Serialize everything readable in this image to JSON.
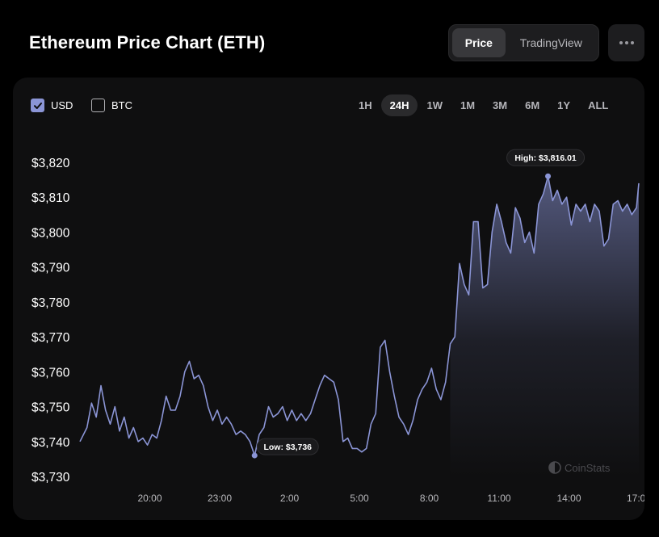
{
  "header": {
    "title": "Ethereum Price Chart (ETH)",
    "view_options": [
      "Price",
      "TradingView"
    ],
    "active_view": "Price"
  },
  "currency_toggles": [
    {
      "label": "USD",
      "checked": true
    },
    {
      "label": "BTC",
      "checked": false
    }
  ],
  "time_ranges": [
    "1H",
    "24H",
    "1W",
    "1M",
    "3M",
    "6M",
    "1Y",
    "ALL"
  ],
  "active_range": "24H",
  "watermark": "CoinStats",
  "colors": {
    "line": "#8b95d6",
    "accent": "#8b95d6",
    "card": "#0f0f10"
  },
  "chart_data": {
    "type": "area",
    "title": "",
    "xlabel": "",
    "ylabel": "",
    "x_tick_labels": [
      "20:00",
      "23:00",
      "2:00",
      "5:00",
      "8:00",
      "11:00",
      "14:00",
      "17:00"
    ],
    "y_tick_labels": [
      "$3,820",
      "$3,810",
      "$3,800",
      "$3,790",
      "$3,780",
      "$3,770",
      "$3,760",
      "$3,750",
      "$3,740",
      "$3,730"
    ],
    "y_ticks": [
      3820,
      3810,
      3800,
      3790,
      3780,
      3770,
      3760,
      3750,
      3740,
      3730
    ],
    "ylim": [
      3730,
      3820
    ],
    "x_unit": "hours since 17:00",
    "xlim": [
      0,
      24
    ],
    "x_tick_values": [
      3,
      6,
      9,
      12,
      15,
      18,
      21,
      24
    ],
    "series": [
      {
        "name": "ETH/USD",
        "x": [
          0,
          0.3,
          0.5,
          0.7,
          0.9,
          1.1,
          1.3,
          1.5,
          1.7,
          1.9,
          2.1,
          2.3,
          2.5,
          2.7,
          2.9,
          3.1,
          3.3,
          3.5,
          3.7,
          3.9,
          4.1,
          4.3,
          4.5,
          4.7,
          4.9,
          5.1,
          5.3,
          5.5,
          5.7,
          5.9,
          6.1,
          6.3,
          6.5,
          6.7,
          6.9,
          7.1,
          7.3,
          7.5,
          7.7,
          7.9,
          8.1,
          8.3,
          8.5,
          8.7,
          8.9,
          9.1,
          9.3,
          9.5,
          9.7,
          9.9,
          10.1,
          10.3,
          10.5,
          10.7,
          10.9,
          11.1,
          11.3,
          11.5,
          11.7,
          11.9,
          12.1,
          12.3,
          12.5,
          12.7,
          12.9,
          13.1,
          13.3,
          13.5,
          13.7,
          13.9,
          14.1,
          14.3,
          14.5,
          14.7,
          14.9,
          15.1,
          15.3,
          15.5,
          15.7,
          15.9,
          16.1,
          16.3,
          16.5,
          16.7,
          16.9,
          17.1,
          17.3,
          17.5,
          17.7,
          17.9,
          18.1,
          18.3,
          18.5,
          18.7,
          18.9,
          19.1,
          19.3,
          19.5,
          19.7,
          19.9,
          20.1,
          20.3,
          20.5,
          20.7,
          20.9,
          21.1,
          21.3,
          21.5,
          21.7,
          21.9,
          22.1,
          22.3,
          22.5,
          22.7,
          22.9,
          23.1,
          23.3,
          23.5,
          23.7,
          23.9,
          24.0
        ],
        "values": [
          3740,
          3744,
          3751,
          3747,
          3756,
          3749,
          3745,
          3750,
          3743,
          3747,
          3741,
          3744,
          3740,
          3741,
          3739,
          3742,
          3741,
          3746,
          3753,
          3749,
          3749,
          3753,
          3760,
          3763,
          3758,
          3759,
          3756,
          3750,
          3746,
          3749,
          3745,
          3747,
          3745,
          3742,
          3743,
          3742,
          3740,
          3736,
          3742,
          3744,
          3750,
          3747,
          3748,
          3750,
          3746,
          3749,
          3746,
          3748,
          3746,
          3748,
          3752,
          3756,
          3759,
          3758,
          3757,
          3752,
          3740,
          3741,
          3738,
          3738,
          3737,
          3738,
          3745,
          3748,
          3767,
          3769,
          3760,
          3753,
          3747,
          3745,
          3742,
          3746,
          3752,
          3755,
          3757,
          3761,
          3755,
          3752,
          3757,
          3768,
          3770,
          3791,
          3785,
          3782,
          3803,
          3803,
          3784,
          3785,
          3800,
          3808,
          3803,
          3797,
          3794,
          3807,
          3804,
          3797,
          3800,
          3794,
          3808,
          3811,
          3816,
          3809,
          3812,
          3808,
          3810,
          3802,
          3808,
          3806,
          3808,
          3803,
          3808,
          3806,
          3796,
          3798,
          3808,
          3809,
          3806,
          3808,
          3805,
          3807,
          3814
        ]
      }
    ],
    "annotations": [
      {
        "type": "high",
        "label": "High: $3,816.01",
        "x": 20.1,
        "value": 3816.01
      },
      {
        "type": "low",
        "label": "Low: $3,736",
        "x": 7.5,
        "value": 3736
      }
    ],
    "grid": false
  }
}
